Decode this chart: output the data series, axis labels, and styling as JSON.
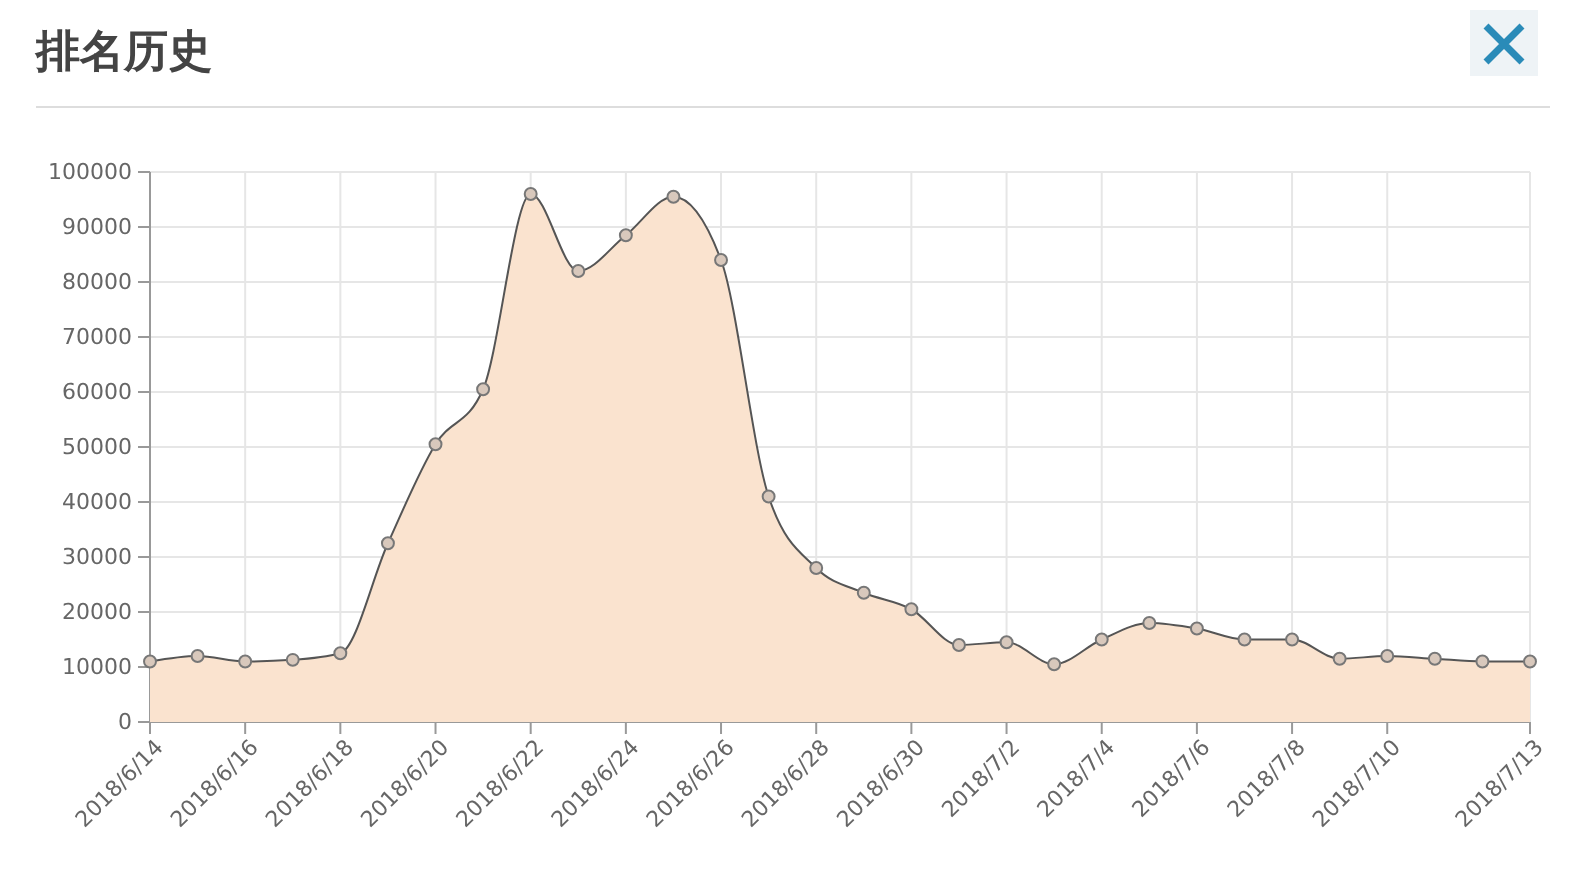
{
  "chart_data": {
    "type": "area",
    "title": "排名历史",
    "x": [
      "2018-06-14",
      "2018-06-15",
      "2018-06-16",
      "2018-06-17",
      "2018-06-18",
      "2018-06-19",
      "2018-06-20",
      "2018-06-21",
      "2018-06-22",
      "2018-06-23",
      "2018-06-24",
      "2018-06-25",
      "2018-06-26",
      "2018-06-27",
      "2018-06-28",
      "2018-06-29",
      "2018-06-30",
      "2018-07-01",
      "2018-07-02",
      "2018-07-03",
      "2018-07-04",
      "2018-07-05",
      "2018-07-06",
      "2018-07-07",
      "2018-07-08",
      "2018-07-09",
      "2018-07-10",
      "2018-07-11",
      "2018-07-12",
      "2018-07-13"
    ],
    "series": [
      {
        "color": "#fae3cf",
        "values": [
          11000,
          12000,
          11000,
          11300,
          12500,
          32500,
          50500,
          60500,
          96000,
          82000,
          88500,
          95500,
          84000,
          41000,
          28000,
          23500,
          20500,
          14000,
          14500,
          10500,
          15000,
          18000,
          17000,
          15000,
          15000,
          11500,
          12000,
          11500,
          11000,
          11000
        ]
      }
    ],
    "xlim": [
      "2018-06-14",
      "2018-07-13"
    ],
    "xticks": [
      {
        "value": "2018-06-14",
        "label": "2018/6/14"
      },
      {
        "value": "2018-06-16",
        "label": "2018/6/16"
      },
      {
        "value": "2018-06-18",
        "label": "2018/6/18"
      },
      {
        "value": "2018-06-20",
        "label": "2018/6/20"
      },
      {
        "value": "2018-06-22",
        "label": "2018/6/22"
      },
      {
        "value": "2018-06-24",
        "label": "2018/6/24"
      },
      {
        "value": "2018-06-26",
        "label": "2018/6/26"
      },
      {
        "value": "2018-06-28",
        "label": "2018/6/28"
      },
      {
        "value": "2018-06-30",
        "label": "2018/6/30"
      },
      {
        "value": "2018-07-02",
        "label": "2018/7/2"
      },
      {
        "value": "2018-07-04",
        "label": "2018/7/4"
      },
      {
        "value": "2018-07-06",
        "label": "2018/7/6"
      },
      {
        "value": "2018-07-08",
        "label": "2018/7/8"
      },
      {
        "value": "2018-07-10",
        "label": "2018/7/10"
      },
      {
        "value": "2018-07-13",
        "label": "2018/7/13"
      }
    ],
    "ylim": [
      0,
      100000
    ],
    "yticks": [
      0,
      10000,
      20000,
      30000,
      40000,
      50000,
      60000,
      70000,
      80000,
      90000,
      100000
    ],
    "grid": true,
    "marker": "circle",
    "line_style": "solid"
  }
}
